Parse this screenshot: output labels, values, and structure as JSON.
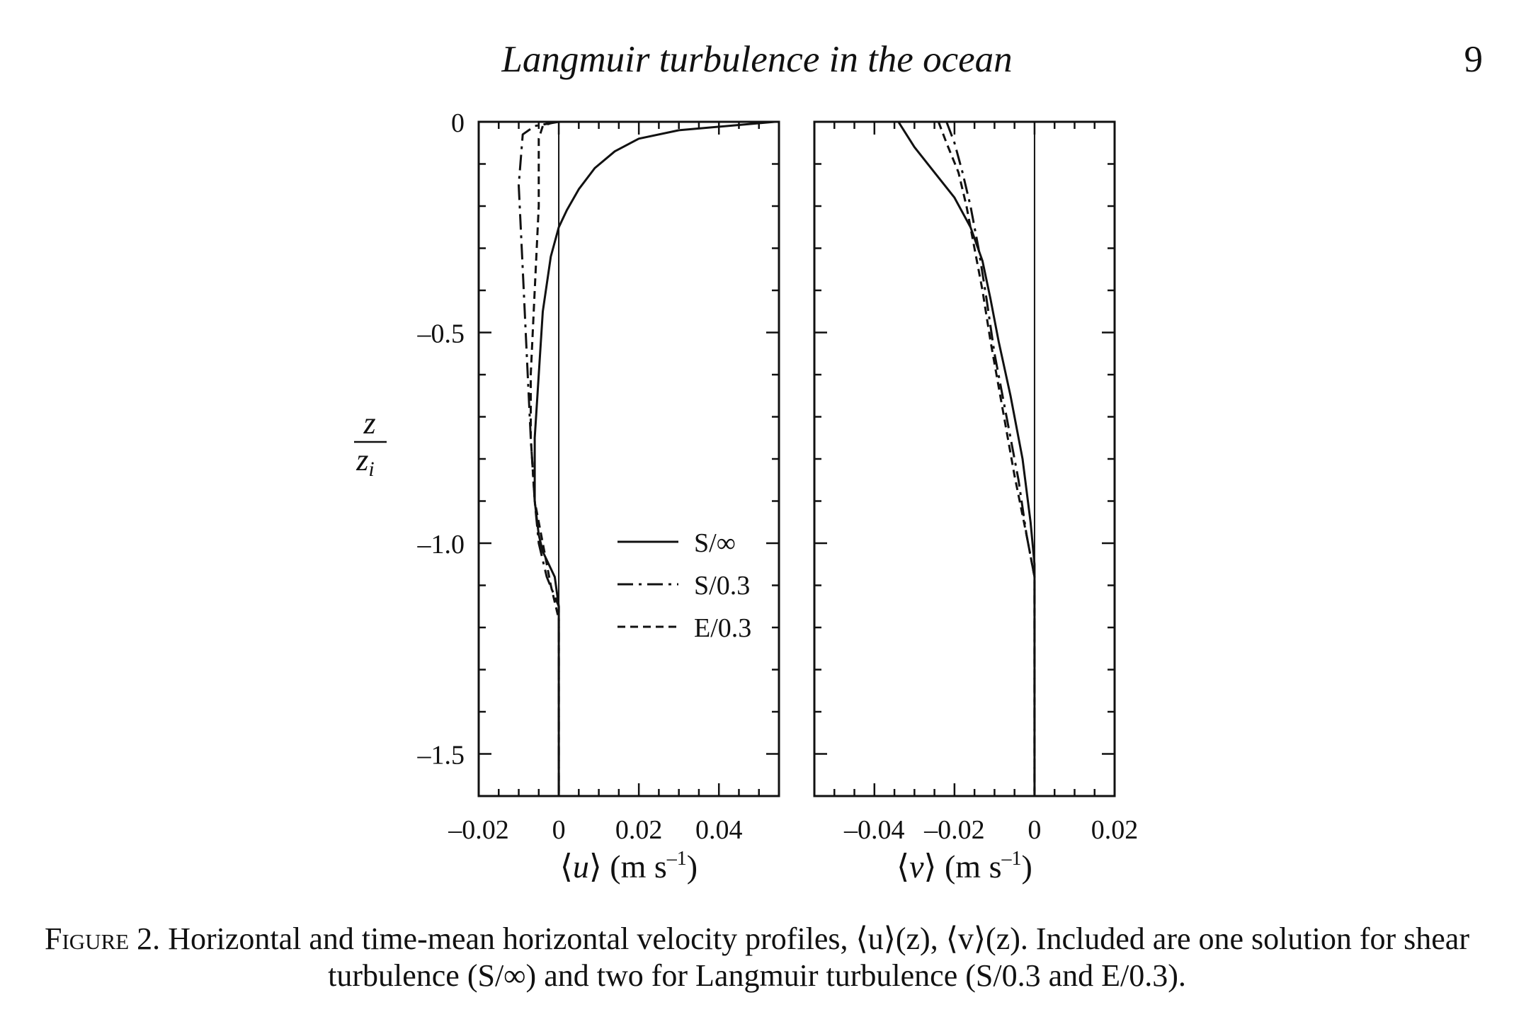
{
  "header": {
    "running_title": "Langmuir turbulence in the ocean",
    "page_number": "9"
  },
  "caption": {
    "label": "Figure 2.",
    "text": "Horizontal and time-mean horizontal velocity profiles, ⟨u⟩(z), ⟨v⟩(z). Included are one solution for shear turbulence (S/∞) and two for Langmuir turbulence (S/0.3 and E/0.3)."
  },
  "chart_data": [
    {
      "type": "line",
      "panel": "u",
      "xlabel_var": "u",
      "xlabel_units": "(m s",
      "xlabel_exp": "–1",
      "xlabel_close": ")",
      "ylabel_num": "z",
      "ylabel_den": "z",
      "ylabel_den_sub": "i",
      "xlim": [
        -0.02,
        0.055
      ],
      "ylim": [
        -1.6,
        0
      ],
      "xticks": [
        -0.02,
        0,
        0.02,
        0.04
      ],
      "xtick_labels": [
        "–0.02",
        "0",
        "0.02",
        "0.04"
      ],
      "yticks": [
        0,
        -0.5,
        -1.0,
        -1.5
      ],
      "ytick_labels": [
        "0",
        "–0.5",
        "–1.0",
        "–1.5"
      ],
      "legend": {
        "position": "lower-right",
        "entries": [
          "S/∞",
          "S/0.3",
          "E/0.3"
        ]
      },
      "series": [
        {
          "name": "S/∞",
          "style": "solid",
          "x": [
            0.054,
            0.03,
            0.02,
            0.014,
            0.009,
            0.005,
            0.002,
            0.0,
            -0.002,
            -0.004,
            -0.005,
            -0.006,
            -0.006,
            -0.005,
            -0.004,
            -0.001,
            0.0,
            0.0
          ],
          "y": [
            0,
            -0.02,
            -0.04,
            -0.07,
            -0.11,
            -0.16,
            -0.21,
            -0.25,
            -0.32,
            -0.45,
            -0.6,
            -0.75,
            -0.9,
            -0.98,
            -1.02,
            -1.08,
            -1.15,
            -1.6
          ]
        },
        {
          "name": "S/0.3",
          "style": "dashdot",
          "x": [
            0.0,
            -0.006,
            -0.009,
            -0.01,
            -0.009,
            -0.008,
            -0.007,
            -0.006,
            -0.005,
            -0.003,
            0.0,
            0.0
          ],
          "y": [
            0,
            -0.01,
            -0.03,
            -0.15,
            -0.35,
            -0.55,
            -0.75,
            -0.9,
            -1.0,
            -1.08,
            -1.15,
            -1.6
          ]
        },
        {
          "name": "E/0.3",
          "style": "dashed",
          "x": [
            -0.001,
            -0.004,
            -0.005,
            -0.005,
            -0.006,
            -0.007,
            -0.007,
            -0.006,
            -0.004,
            -0.002,
            0.0,
            0.0
          ],
          "y": [
            0,
            -0.01,
            -0.04,
            -0.2,
            -0.4,
            -0.6,
            -0.75,
            -0.9,
            -1.0,
            -1.1,
            -1.18,
            -1.6
          ]
        }
      ]
    },
    {
      "type": "line",
      "panel": "v",
      "xlabel_var": "v",
      "xlabel_units": "(m s",
      "xlabel_exp": "–1",
      "xlabel_close": ")",
      "xlim": [
        -0.055,
        0.02
      ],
      "ylim": [
        -1.6,
        0
      ],
      "xticks": [
        -0.04,
        -0.02,
        0,
        0.02
      ],
      "xtick_labels": [
        "–0.04",
        "–0.02",
        "0",
        "0.02"
      ],
      "yticks": [
        0,
        -0.5,
        -1.0,
        -1.5
      ],
      "series": [
        {
          "name": "S/∞",
          "style": "solid",
          "x": [
            -0.034,
            -0.03,
            -0.025,
            -0.02,
            -0.016,
            -0.013,
            -0.011,
            -0.009,
            -0.006,
            -0.003,
            -0.001,
            0.0,
            0.0,
            0.0
          ],
          "y": [
            0,
            -0.06,
            -0.12,
            -0.18,
            -0.25,
            -0.33,
            -0.42,
            -0.52,
            -0.65,
            -0.8,
            -0.95,
            -1.05,
            -1.15,
            -1.6
          ]
        },
        {
          "name": "S/0.3",
          "style": "dashdot",
          "x": [
            -0.022,
            -0.02,
            -0.018,
            -0.016,
            -0.014,
            -0.012,
            -0.01,
            -0.007,
            -0.004,
            -0.002,
            0.0,
            0.0
          ],
          "y": [
            0,
            -0.05,
            -0.12,
            -0.2,
            -0.3,
            -0.42,
            -0.55,
            -0.7,
            -0.85,
            -0.98,
            -1.08,
            -1.6
          ]
        },
        {
          "name": "E/0.3",
          "style": "dashed",
          "x": [
            -0.024,
            -0.022,
            -0.019,
            -0.017,
            -0.015,
            -0.013,
            -0.011,
            -0.008,
            -0.005,
            -0.002,
            0.0,
            0.0
          ],
          "y": [
            0,
            -0.05,
            -0.12,
            -0.2,
            -0.3,
            -0.4,
            -0.52,
            -0.68,
            -0.84,
            -0.98,
            -1.08,
            -1.6
          ]
        }
      ]
    }
  ]
}
